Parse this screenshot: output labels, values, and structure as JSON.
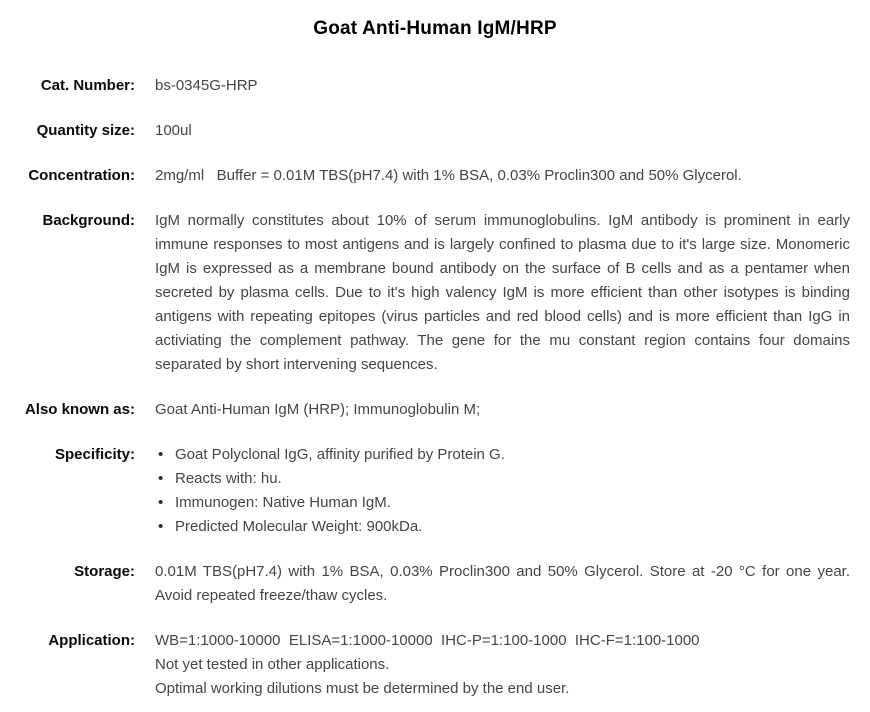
{
  "page": {
    "title": "Goat Anti-Human IgM/HRP"
  },
  "glyphs": {
    "bullet": "•"
  },
  "colors": {
    "page_background": "#ffffff",
    "label_text": "#0a0a0a",
    "body_text": "#454545",
    "title_text": "#000000"
  },
  "fields": {
    "cat_number": {
      "label": "Cat. Number:",
      "value": "bs-0345G-HRP"
    },
    "quantity": {
      "label": "Quantity size:",
      "value": "100ul"
    },
    "concentration": {
      "label": "Concentration:",
      "value": "2mg/ml   Buffer = 0.01M TBS(pH7.4) with 1% BSA, 0.03% Proclin300 and 50% Glycerol."
    },
    "background": {
      "label": "Background:",
      "value": "IgM normally constitutes about 10% of serum immunoglobulins. IgM antibody is prominent in early immune responses to most antigens and is largely confined to plasma due to it's large size. Monomeric IgM is expressed as a membrane bound antibody on the surface of B cells and as a pentamer when secreted by plasma cells. Due to it's high valency IgM is more efficient than other isotypes is binding antigens with repeating epitopes (virus particles and red blood cells) and is more efficient than IgG in activiating the complement pathway. The gene for the mu constant region contains four domains separated by short intervening sequences."
    },
    "also_known_as": {
      "label": "Also known as:",
      "value": "Goat Anti-Human IgM (HRP); Immunoglobulin M;"
    },
    "specificity": {
      "label": "Specificity:",
      "items": [
        "Goat Polyclonal IgG, affinity purified by Protein G.",
        "Reacts with: hu.",
        "Immunogen: Native Human IgM.",
        "Predicted Molecular Weight: 900kDa."
      ]
    },
    "storage": {
      "label": "Storage:",
      "value": "0.01M TBS(pH7.4) with 1% BSA, 0.03% Proclin300 and 50% Glycerol. Store at -20 °C for one year. Avoid repeated freeze/thaw cycles."
    },
    "application": {
      "label": "Application:",
      "lines": [
        "WB=1:1000-10000  ELISA=1:1000-10000  IHC-P=1:100-1000  IHC-F=1:100-1000",
        "Not yet tested in other applications.",
        "Optimal working dilutions must be determined by the end user."
      ]
    }
  }
}
